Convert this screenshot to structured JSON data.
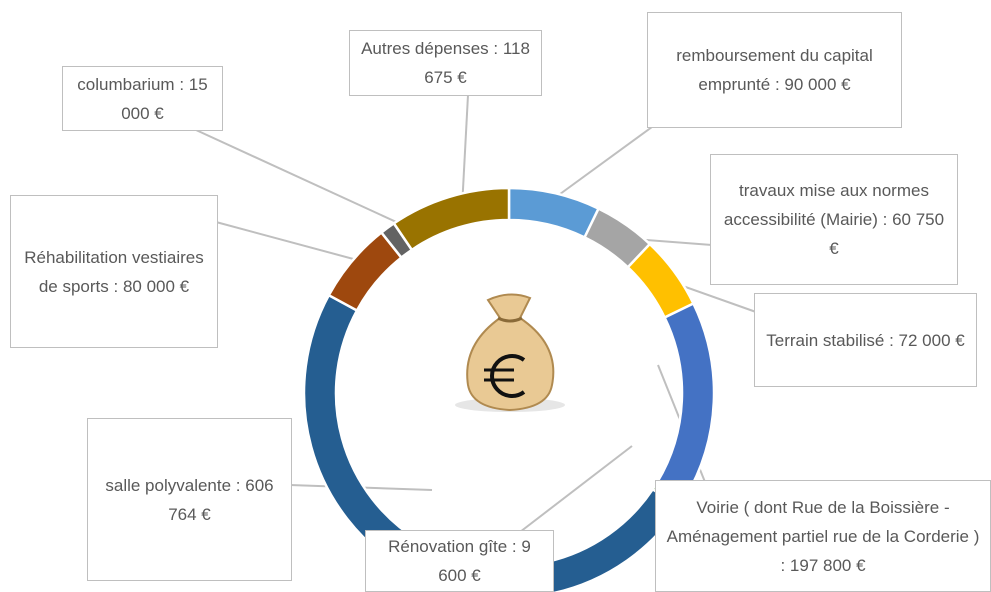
{
  "chart_data": {
    "type": "donut",
    "categories": [
      "remboursement du capital emprunté :",
      "travaux mise aux normes accessibilité (Mairie) :",
      "Terrain stabilisé :",
      "Voirie ( dont Rue de la Boissière - Aménagement partiel rue de la Corderie ) :",
      "Rénovation gîte :",
      "salle polyvalente :",
      "Réhabilitation vestiaires de sports :",
      "columbarium :",
      "Autres dépenses :"
    ],
    "values": [
      90000,
      60750,
      72000,
      197800,
      9600,
      606764,
      80000,
      15000,
      118675
    ],
    "value_labels": [
      "90 000 €",
      "60 750 €",
      "72 000 €",
      "197 800 €",
      "9 600 €",
      "606 764 €",
      "80 000 €",
      "15 000 €",
      "118 675 €"
    ],
    "colors": [
      "#5b9bd5",
      "#a5a5a5",
      "#ffc000",
      "#4472c4",
      "#70ad47",
      "#255e91",
      "#9e480e",
      "#636363",
      "#997300"
    ]
  }
}
